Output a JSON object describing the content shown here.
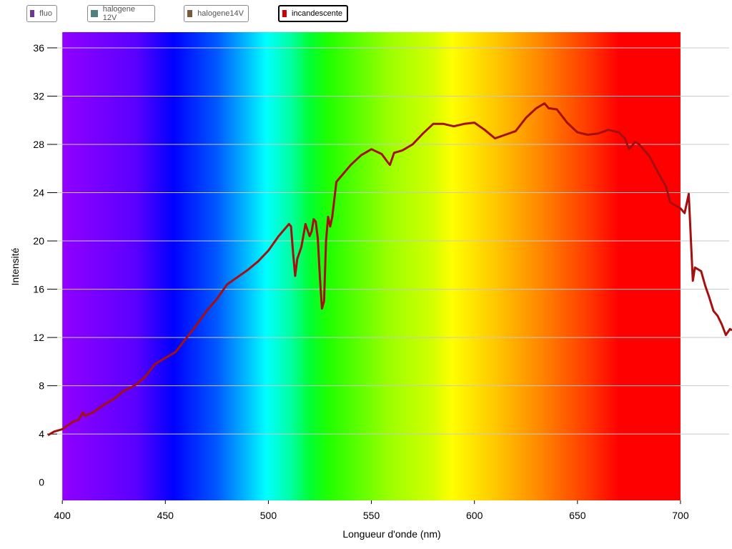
{
  "legend": [
    {
      "label": "fluo",
      "color": "#6b3a8c",
      "active": false
    },
    {
      "label": "halogene 12V",
      "color": "#4f8080",
      "active": false
    },
    {
      "label": "halogene14V",
      "color": "#7a5a3a",
      "active": false
    },
    {
      "label": "incandescente",
      "color": "#cc0000",
      "active": true
    }
  ],
  "chart_data": {
    "type": "line",
    "xlabel": "Longueur d'onde (nm)",
    "ylabel": "Intensité",
    "xlim": [
      393,
      725
    ],
    "ylim": [
      -1.5,
      37.3
    ],
    "x_ticks": [
      400,
      450,
      500,
      550,
      600,
      650,
      700
    ],
    "y_ticks": [
      0,
      4,
      8,
      12,
      16,
      20,
      24,
      28,
      32,
      36
    ],
    "grid": "horizontal",
    "background": "visible spectrum gradient 400–700 nm",
    "series": [
      {
        "name": "incandescente",
        "color": "#a50f0f",
        "points": [
          [
            393,
            3.9
          ],
          [
            396,
            4.2
          ],
          [
            400,
            4.4
          ],
          [
            405,
            5.0
          ],
          [
            408,
            5.2
          ],
          [
            410,
            5.8
          ],
          [
            411,
            5.5
          ],
          [
            415,
            5.8
          ],
          [
            420,
            6.4
          ],
          [
            425,
            6.9
          ],
          [
            430,
            7.6
          ],
          [
            435,
            8.0
          ],
          [
            440,
            8.7
          ],
          [
            445,
            9.8
          ],
          [
            450,
            10.3
          ],
          [
            455,
            10.8
          ],
          [
            460,
            11.9
          ],
          [
            465,
            13.0
          ],
          [
            470,
            14.2
          ],
          [
            475,
            15.2
          ],
          [
            480,
            16.4
          ],
          [
            485,
            17.0
          ],
          [
            490,
            17.6
          ],
          [
            495,
            18.3
          ],
          [
            500,
            19.2
          ],
          [
            505,
            20.4
          ],
          [
            510,
            21.4
          ],
          [
            511,
            21.2
          ],
          [
            512,
            19.0
          ],
          [
            513,
            17.1
          ],
          [
            514,
            18.5
          ],
          [
            516,
            19.5
          ],
          [
            518,
            21.4
          ],
          [
            520,
            20.4
          ],
          [
            521,
            20.8
          ],
          [
            522,
            21.8
          ],
          [
            523,
            21.6
          ],
          [
            524,
            20.2
          ],
          [
            525,
            17.0
          ],
          [
            526,
            14.4
          ],
          [
            527,
            15.0
          ],
          [
            528,
            20.0
          ],
          [
            529,
            22.0
          ],
          [
            530,
            21.2
          ],
          [
            531,
            22.0
          ],
          [
            533,
            24.9
          ],
          [
            535,
            25.3
          ],
          [
            540,
            26.3
          ],
          [
            545,
            27.1
          ],
          [
            550,
            27.6
          ],
          [
            555,
            27.2
          ],
          [
            558,
            26.5
          ],
          [
            559,
            26.3
          ],
          [
            561,
            27.3
          ],
          [
            565,
            27.5
          ],
          [
            570,
            28.0
          ],
          [
            575,
            28.9
          ],
          [
            580,
            29.7
          ],
          [
            585,
            29.7
          ],
          [
            590,
            29.5
          ],
          [
            595,
            29.7
          ],
          [
            600,
            29.8
          ],
          [
            605,
            29.2
          ],
          [
            610,
            28.5
          ],
          [
            615,
            28.8
          ],
          [
            620,
            29.1
          ],
          [
            625,
            30.2
          ],
          [
            630,
            31.0
          ],
          [
            634,
            31.4
          ],
          [
            636,
            31.0
          ],
          [
            640,
            30.9
          ],
          [
            645,
            29.8
          ],
          [
            650,
            29.0
          ],
          [
            655,
            28.8
          ],
          [
            660,
            28.9
          ],
          [
            665,
            29.2
          ],
          [
            670,
            29.0
          ],
          [
            673,
            28.5
          ],
          [
            675,
            27.6
          ],
          [
            678,
            28.2
          ],
          [
            680,
            28.0
          ],
          [
            685,
            27.0
          ],
          [
            690,
            25.4
          ],
          [
            693,
            24.5
          ],
          [
            695,
            23.2
          ],
          [
            700,
            22.7
          ],
          [
            702,
            22.3
          ],
          [
            704,
            23.9
          ],
          [
            706,
            16.7
          ],
          [
            707,
            17.8
          ],
          [
            710,
            17.5
          ],
          [
            712,
            16.3
          ],
          [
            714,
            15.3
          ],
          [
            716,
            14.2
          ],
          [
            718,
            13.8
          ],
          [
            720,
            13.1
          ],
          [
            722,
            12.2
          ],
          [
            724,
            12.7
          ],
          [
            725,
            12.6
          ]
        ]
      }
    ]
  }
}
